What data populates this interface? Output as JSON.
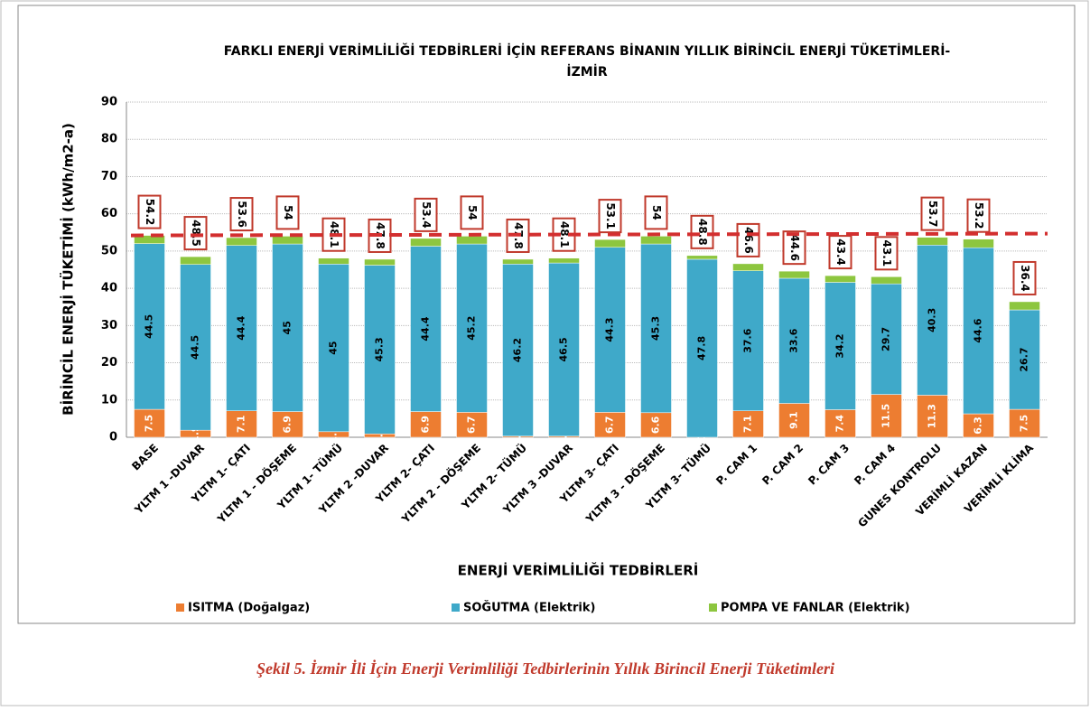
{
  "chart_data": {
    "type": "stacked_bar",
    "title": [
      "FARKLI ENERJİ VERİMLİLİĞİ TEDBİRLERİ İÇİN REFERANS BİNANIN YILLIK BİRİNCİL ENERJİ TÜKETİMLERİ-",
      "İZMİR"
    ],
    "ylabel": "BİRİNCİL ENERJİ TÜKETİMİ (kWh/m2-a)",
    "xlabel": "ENERJİ VERİMLİLİĞİ TEDBİRLERİ",
    "categories": [
      "BASE",
      "YLTM 1 -DUVAR",
      "YLTM 1- ÇATI",
      "YLTM 1 - DÖŞEME",
      "YLTM 1- TÜMÜ",
      "YLTM 2 -DUVAR",
      "YLTM 2- ÇATI",
      "YLTM 2 - DÖŞEME",
      "YLTM 2- TÜMÜ",
      "YLTM 3 -DUVAR",
      "YLTM 3- ÇATI",
      "YLTM 3 - DÖŞEME",
      "YLTM 3- TÜMÜ",
      "P. CAM 1",
      "P. CAM 2",
      "P. CAM 3",
      "P. CAM 4",
      "GUNES KONTROLU",
      "VERİMLİ KAZAN",
      "VERİMLİ KLİMA"
    ],
    "series": [
      {
        "name": "ISITMA (Doğalgaz)",
        "color": "#ed7d31",
        "values": [
          7.5,
          1.9,
          7.1,
          6.9,
          1.5,
          0.9,
          6.9,
          6.7,
          0.3,
          0.3,
          6.7,
          6.6,
          0,
          7.1,
          9.1,
          7.4,
          11.5,
          11.3,
          6.3,
          7.5
        ]
      },
      {
        "name": "SOĞUTMA (Elektrik)",
        "color": "#3fa9c9",
        "values": [
          44.5,
          44.5,
          44.4,
          45.0,
          45.0,
          45.3,
          44.4,
          45.2,
          46.2,
          46.5,
          44.3,
          45.3,
          47.8,
          37.6,
          33.6,
          34.2,
          29.7,
          40.3,
          44.6,
          26.7
        ]
      },
      {
        "name": "POMPA VE FANLAR (Elektrik)",
        "color": "#8dc63f",
        "values": [
          2.2,
          2.1,
          2.1,
          2.1,
          1.6,
          1.6,
          2.1,
          2.1,
          1.3,
          1.3,
          2.1,
          2.1,
          1.0,
          1.9,
          1.9,
          1.8,
          1.9,
          2.1,
          2.3,
          2.2
        ]
      }
    ],
    "totals": [
      54.2,
      48.5,
      53.6,
      54.0,
      48.1,
      47.8,
      53.4,
      54.0,
      47.8,
      48.1,
      53.1,
      54.0,
      48.8,
      46.6,
      44.6,
      43.4,
      43.1,
      53.7,
      53.2,
      36.4
    ],
    "ylim": [
      0,
      90
    ],
    "yticks": [
      0,
      10,
      20,
      30,
      40,
      50,
      60,
      70,
      80,
      90
    ],
    "grid": true,
    "caption": "Şekil 5. İzmir İli İçin Enerji Verimliliği Tedbirlerinin Yıllık Birincil Enerji Tüketimleri"
  }
}
